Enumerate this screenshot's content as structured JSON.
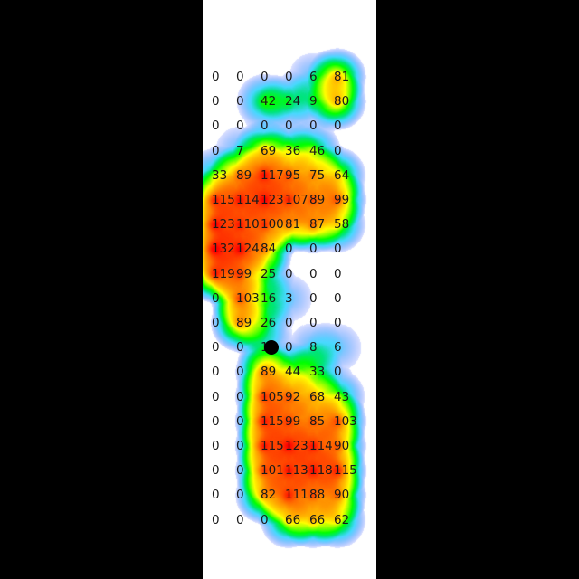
{
  "pressure_grid": {
    "rows": [
      [
        0,
        0,
        0,
        0,
        6,
        81
      ],
      [
        0,
        0,
        42,
        24,
        9,
        80
      ],
      [
        0,
        0,
        0,
        0,
        0,
        0
      ],
      [
        0,
        7,
        69,
        36,
        46,
        0
      ],
      [
        33,
        89,
        117,
        95,
        75,
        64
      ],
      [
        115,
        114,
        123,
        107,
        89,
        99
      ],
      [
        123,
        110,
        100,
        81,
        87,
        58
      ],
      [
        132,
        124,
        84,
        0,
        0,
        0
      ],
      [
        119,
        99,
        25,
        0,
        0,
        0
      ],
      [
        0,
        103,
        16,
        3,
        0,
        0
      ],
      [
        0,
        89,
        26,
        0,
        0,
        0
      ],
      [
        0,
        0,
        10,
        0,
        8,
        6
      ],
      [
        0,
        0,
        89,
        44,
        33,
        0
      ],
      [
        0,
        0,
        105,
        92,
        68,
        43
      ],
      [
        0,
        0,
        115,
        99,
        85,
        103
      ],
      [
        0,
        0,
        115,
        123,
        114,
        90
      ],
      [
        0,
        0,
        101,
        113,
        118,
        115
      ],
      [
        0,
        0,
        82,
        111,
        88,
        90
      ],
      [
        0,
        0,
        0,
        66,
        66,
        62
      ]
    ],
    "max_value": 132
  },
  "center_of_pressure": {
    "row": 11,
    "col": 2.3
  },
  "colors": {
    "background": "#ffffff",
    "low": "#0000ff",
    "mid": "#00ff00",
    "high": "#ff0000",
    "text": "#1a1a1a",
    "marker": "#000000"
  }
}
